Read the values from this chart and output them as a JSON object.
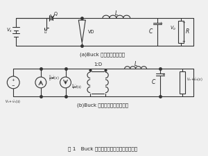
{
  "title": "图 1   Buck 变换器电路拓扑与统一电路模型",
  "sub_a": "(a)Buck 变换器的电路拓扑",
  "sub_b": "(b)Buck 变换器的统一电路模型",
  "bg_color": "#f0f0f0",
  "line_color": "#333333",
  "text_color": "#222222",
  "font_size_label": 5.5,
  "font_size_caption": 5.0,
  "font_size_title": 5.2
}
